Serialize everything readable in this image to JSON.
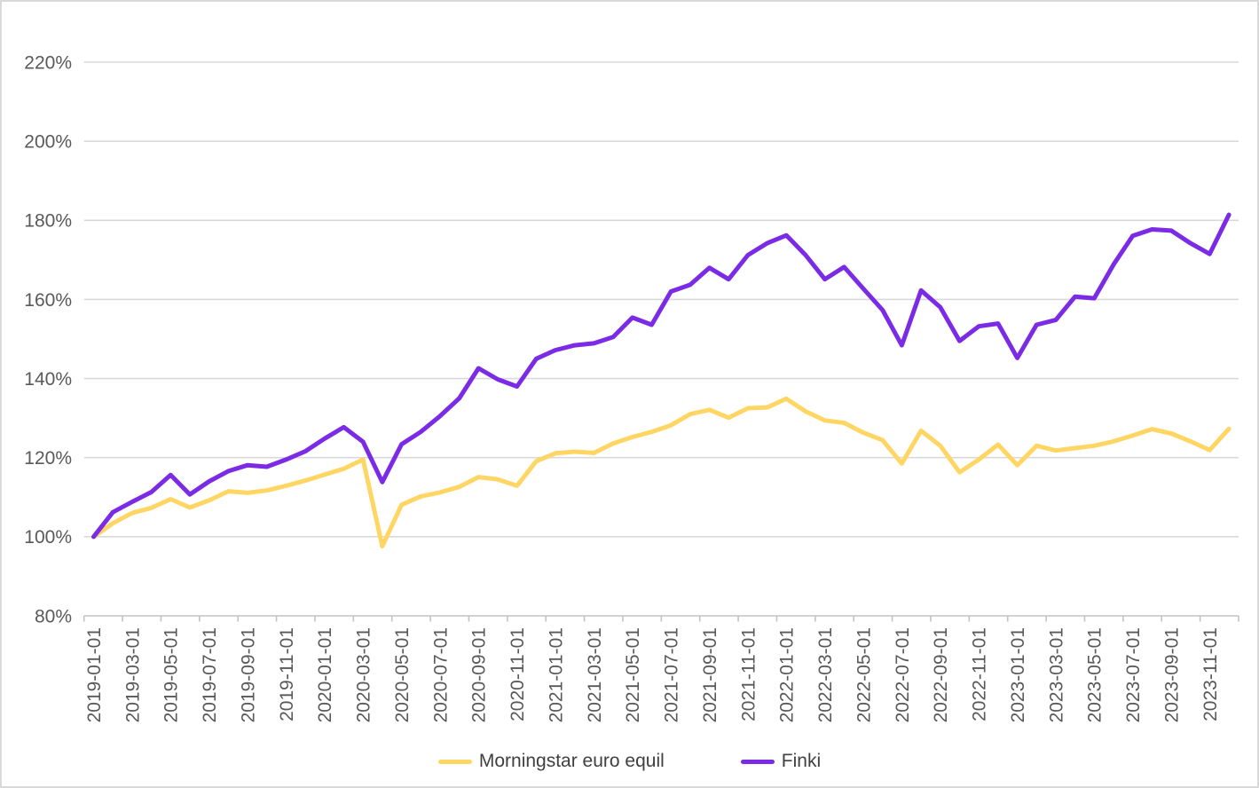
{
  "page": {
    "background": "#ffffff",
    "border_color": "#d9d9d9"
  },
  "chart_data": {
    "type": "line",
    "title": "",
    "xlabel": "",
    "ylabel": "",
    "ylim": [
      80,
      220
    ],
    "grid": true,
    "legend_position": "bottom",
    "axis_text_color": "#595959",
    "gridline_color": "#d9d9d9",
    "axis_line_color": "#c3c3c3",
    "legend_text_color": "#404040",
    "x_tick_label_every": 2,
    "y_ticks": [
      {
        "value": 80,
        "label": "80%"
      },
      {
        "value": 100,
        "label": "100%"
      },
      {
        "value": 120,
        "label": "120%"
      },
      {
        "value": 140,
        "label": "140%"
      },
      {
        "value": 160,
        "label": "160%"
      },
      {
        "value": 180,
        "label": "180%"
      },
      {
        "value": 200,
        "label": "200%"
      },
      {
        "value": 220,
        "label": "220%"
      }
    ],
    "x": [
      "2019-01-01",
      "2019-02-01",
      "2019-03-01",
      "2019-04-01",
      "2019-05-01",
      "2019-06-01",
      "2019-07-01",
      "2019-08-01",
      "2019-09-01",
      "2019-10-01",
      "2019-11-01",
      "2019-12-01",
      "2020-01-01",
      "2020-02-01",
      "2020-03-01",
      "2020-04-01",
      "2020-05-01",
      "2020-06-01",
      "2020-07-01",
      "2020-08-01",
      "2020-09-01",
      "2020-10-01",
      "2020-11-01",
      "2020-12-01",
      "2021-01-01",
      "2021-02-01",
      "2021-03-01",
      "2021-04-01",
      "2021-05-01",
      "2021-06-01",
      "2021-07-01",
      "2021-08-01",
      "2021-09-01",
      "2021-10-01",
      "2021-11-01",
      "2021-12-01",
      "2022-01-01",
      "2022-02-01",
      "2022-03-01",
      "2022-04-01",
      "2022-05-01",
      "2022-06-01",
      "2022-07-01",
      "2022-08-01",
      "2022-09-01",
      "2022-10-01",
      "2022-11-01",
      "2022-12-01",
      "2023-01-01",
      "2023-02-01",
      "2023-03-01",
      "2023-04-01",
      "2023-05-01",
      "2023-06-01",
      "2023-07-01",
      "2023-08-01",
      "2023-09-01",
      "2023-10-01",
      "2023-11-01",
      "2023-12-01"
    ],
    "series": [
      {
        "name": "Morningstar euro equil",
        "color": "#FFD664",
        "values": [
          100,
          103.4,
          106,
          107.3,
          109.5,
          107.4,
          109.2,
          111.5,
          111.1,
          111.7,
          112.9,
          114.2,
          115.7,
          117.2,
          119.5,
          97.6,
          108.1,
          110.2,
          111.2,
          112.6,
          115.1,
          114.5,
          112.9,
          119.1,
          121.1,
          121.5,
          121.2,
          123.6,
          125.2,
          126.5,
          128.2,
          131,
          132.1,
          130.1,
          132.5,
          132.7,
          134.9,
          131.7,
          129.4,
          128.8,
          126.3,
          124.4,
          118.5,
          126.8,
          123,
          116.3,
          119.5,
          123.3,
          118.1,
          123,
          121.8,
          122.4,
          123,
          124.1,
          125.6,
          127.2,
          126.1,
          124.1,
          121.9,
          127.3
        ]
      },
      {
        "name": "Finki",
        "color": "#7B2BE6",
        "values": [
          100,
          106.2,
          108.8,
          111.3,
          115.6,
          110.7,
          114,
          116.6,
          118.1,
          117.7,
          119.5,
          121.6,
          124.8,
          127.7,
          124,
          113.8,
          123.4,
          126.5,
          130.5,
          135,
          142.6,
          139.8,
          138,
          145,
          147.2,
          148.4,
          148.9,
          150.5,
          155.4,
          153.6,
          162,
          163.7,
          168,
          165.1,
          171.2,
          174.2,
          176.2,
          171.2,
          165.1,
          168.2,
          162.7,
          157.3,
          148.4,
          162.3,
          158,
          149.5,
          153.2,
          153.9,
          145.2,
          153.6,
          154.8,
          160.7,
          160.3,
          168.8,
          176.1,
          177.7,
          177.4,
          174.2,
          171.5,
          181.4
        ]
      }
    ]
  }
}
